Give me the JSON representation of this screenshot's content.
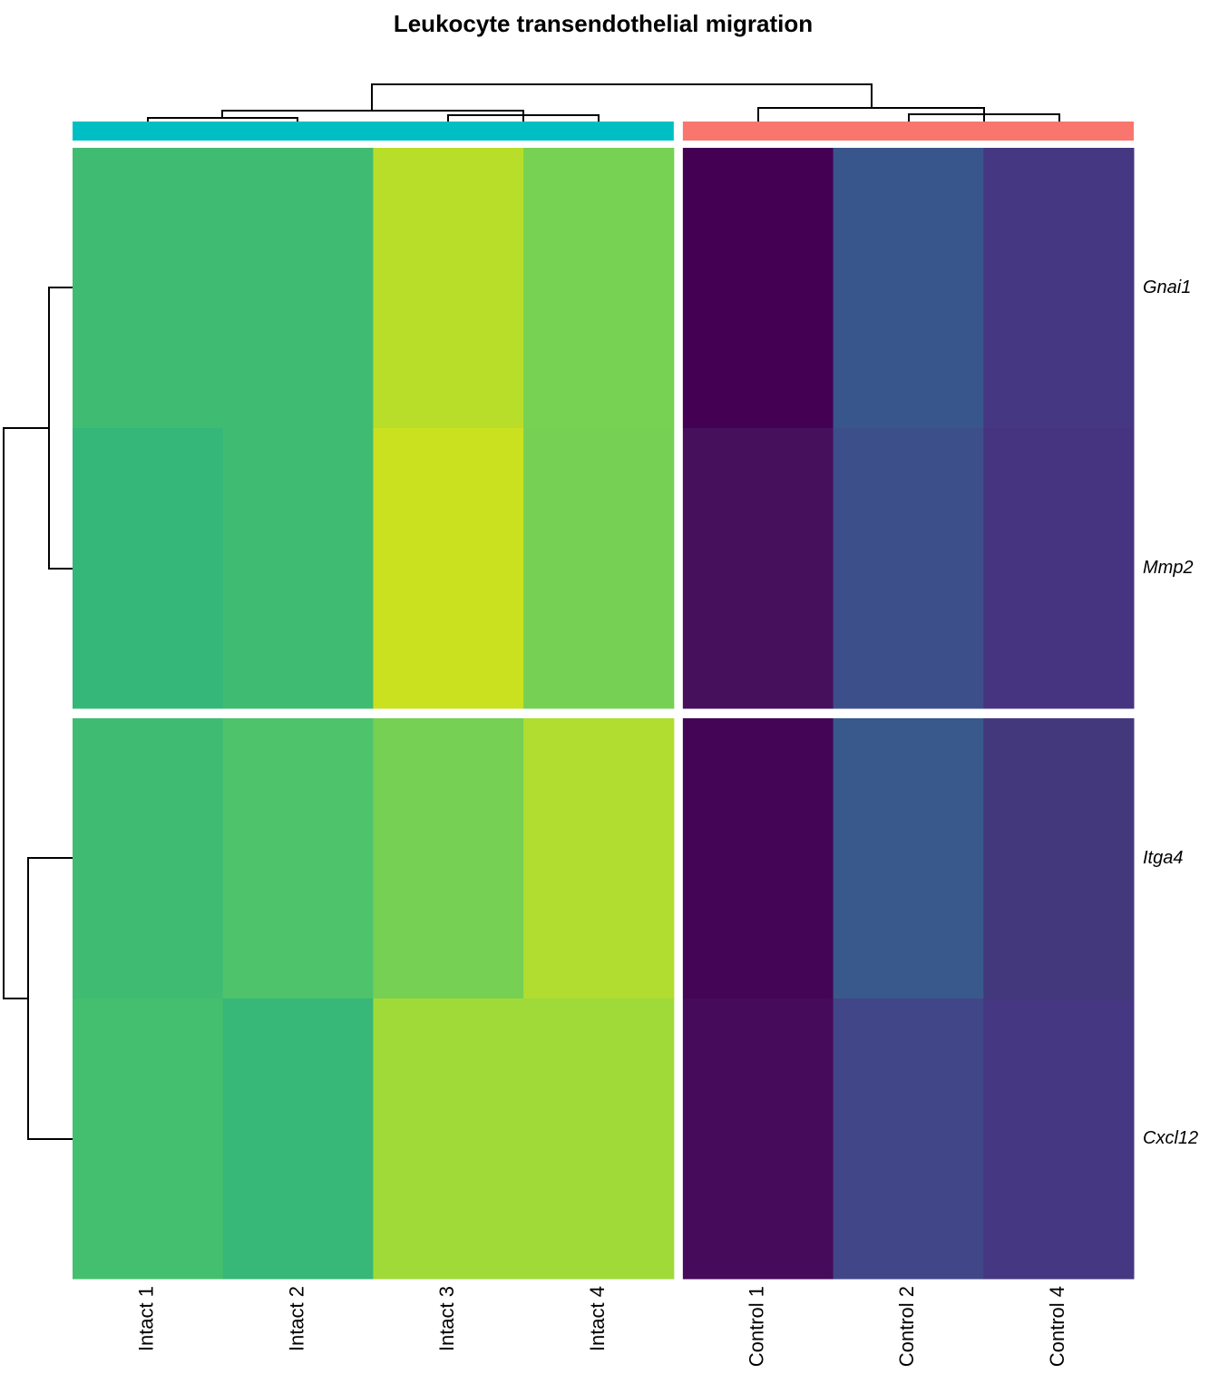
{
  "chart_data": {
    "type": "heatmap",
    "title": "Leukocyte transendothelial migration",
    "column_blocks": [
      {
        "color": "#00bfc4",
        "columns": [
          "Intact 1",
          "Intact 2",
          "Intact 3",
          "Intact 4"
        ]
      },
      {
        "color": "#f8766d",
        "columns": [
          "Control 1",
          "Control 2",
          "Control 4"
        ]
      }
    ],
    "row_blocks": [
      {
        "rows": [
          {
            "name": "Gnai1",
            "colors": [
              "#40bc72",
              "#40bc72",
              "#b8de29",
              "#77d153",
              "#440154",
              "#39568c",
              "#453781"
            ]
          },
          {
            "name": "Mmp2",
            "colors": [
              "#35b779",
              "#40bc72",
              "#cae11f",
              "#75d054",
              "#46105c",
              "#3d4f8a",
              "#463480"
            ]
          }
        ]
      },
      {
        "rows": [
          {
            "name": "Itga4",
            "colors": [
              "#40bc72",
              "#4ec36b",
              "#75d054",
              "#b0dd2f",
              "#440556",
              "#39598c",
              "#44387d"
            ]
          },
          {
            "name": "Cxcl12",
            "colors": [
              "#44bf70",
              "#37b878",
              "#a0da39",
              "#a0da39",
              "#460b5a",
              "#404688",
              "#453781"
            ]
          }
        ]
      }
    ]
  }
}
